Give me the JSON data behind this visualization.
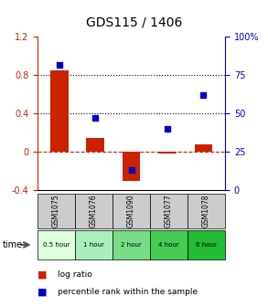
{
  "title": "GDS115 / 1406",
  "samples": [
    "GSM1075",
    "GSM1076",
    "GSM1090",
    "GSM1077",
    "GSM1078"
  ],
  "time_labels": [
    "0.5 hour",
    "1 hour",
    "2 hour",
    "4 hour",
    "6 hour"
  ],
  "log_ratio": [
    0.85,
    0.15,
    -0.3,
    -0.015,
    0.08
  ],
  "percentile": [
    82,
    47,
    13,
    40,
    62
  ],
  "bar_color": "#cc2200",
  "square_color": "#0000cc",
  "ylim_left": [
    -0.4,
    1.2
  ],
  "ylim_right": [
    0,
    100
  ],
  "yticks_left": [
    -0.4,
    0.0,
    0.4,
    0.8,
    1.2
  ],
  "ytick_labels_left": [
    "-0.4",
    "0",
    "0.4",
    "0.8",
    "1.2"
  ],
  "yticks_right": [
    0,
    25,
    50,
    75,
    100
  ],
  "ytick_labels_right": [
    "0",
    "25",
    "50",
    "75",
    "100%"
  ],
  "hlines_dotted": [
    0.4,
    0.8
  ],
  "hline_dashed": 0.0,
  "bg_color": "#ffffff",
  "plot_bg": "#ffffff",
  "time_colors": [
    "#ddffdd",
    "#aaeebb",
    "#77dd88",
    "#44cc55",
    "#22bb33"
  ],
  "gsm_bg": "#cccccc",
  "bar_width": 0.5
}
